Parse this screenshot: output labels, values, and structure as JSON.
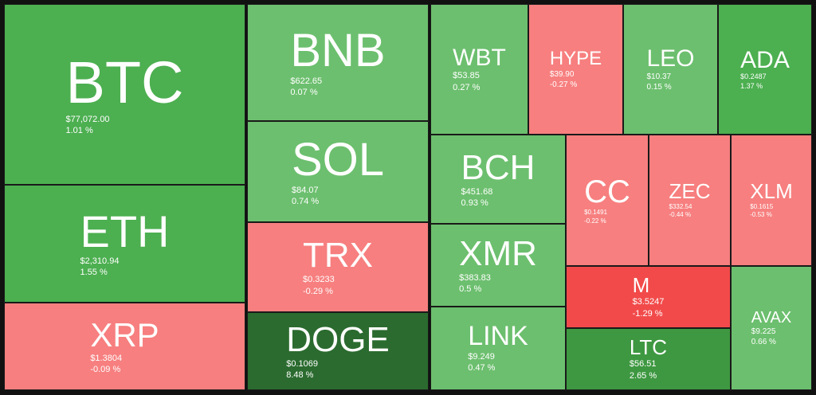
{
  "tiles": [
    {
      "symbol": "BTC",
      "price": "$77,072.00",
      "change": "1.01 %"
    },
    {
      "symbol": "ETH",
      "price": "$2,310.94",
      "change": "1.55 %"
    },
    {
      "symbol": "XRP",
      "price": "$1.3804",
      "change": "-0.09 %"
    },
    {
      "symbol": "BNB",
      "price": "$622.65",
      "change": "0.07 %"
    },
    {
      "symbol": "SOL",
      "price": "$84.07",
      "change": "0.74 %"
    },
    {
      "symbol": "TRX",
      "price": "$0.3233",
      "change": "-0.29 %"
    },
    {
      "symbol": "DOGE",
      "price": "$0.1069",
      "change": "8.48 %"
    },
    {
      "symbol": "WBT",
      "price": "$53.85",
      "change": "0.27 %"
    },
    {
      "symbol": "HYPE",
      "price": "$39.90",
      "change": "-0.27 %"
    },
    {
      "symbol": "LEO",
      "price": "$10.37",
      "change": "0.15 %"
    },
    {
      "symbol": "ADA",
      "price": "$0.2487",
      "change": "1.37 %"
    },
    {
      "symbol": "BCH",
      "price": "$451.68",
      "change": "0.93 %"
    },
    {
      "symbol": "XMR",
      "price": "$383.83",
      "change": "0.5 %"
    },
    {
      "symbol": "LINK",
      "price": "$9.249",
      "change": "0.47 %"
    },
    {
      "symbol": "CC",
      "price": "$0.1491",
      "change": "-0.22 %"
    },
    {
      "symbol": "ZEC",
      "price": "$332.54",
      "change": "-0.44 %"
    },
    {
      "symbol": "XLM",
      "price": "$0.1615",
      "change": "-0.53 %"
    },
    {
      "symbol": "M",
      "price": "$3.5247",
      "change": "-1.29 %"
    },
    {
      "symbol": "LTC",
      "price": "$56.51",
      "change": "2.65 %"
    },
    {
      "symbol": "AVAX",
      "price": "$9.225",
      "change": "0.66 %"
    }
  ]
}
